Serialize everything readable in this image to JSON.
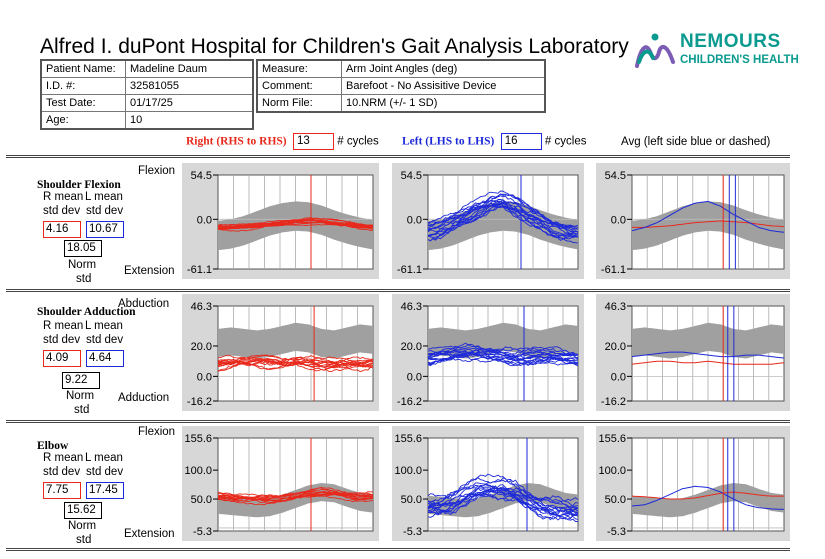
{
  "header": {
    "title": "Alfred I. duPont Hospital for Children's Gait Analysis Laboratory",
    "logo_line1": "NEMOURS",
    "logo_line2": "CHILDREN'S HEALTH"
  },
  "patient": {
    "name_label": "Patient Name:",
    "name": "Madeline Daum",
    "id_label": "I.D. #:",
    "id": "32581055",
    "date_label": "Test Date:",
    "date": "01/17/25",
    "age_label": "Age:",
    "age": "10"
  },
  "test": {
    "measure_label": "Measure:",
    "measure": "Arm Joint Angles (deg)",
    "comment_label": "Comment:",
    "comment": "Barefoot - No Assisitive Device",
    "norm_label": "Norm File:",
    "norm": "10.NRM (+/- 1 SD)"
  },
  "cycles": {
    "right_label": "Right (RHS to RHS)",
    "right_count": "13",
    "left_label": "Left (LHS to LHS)",
    "left_count": "16",
    "unit": "# cycles",
    "avg_note": "Avg (left side blue or dashed)"
  },
  "rows": [
    {
      "name": "Shoulder Flexion",
      "top_label": "Flexion",
      "bottom_label": "Extension",
      "r_mean_label": "R mean",
      "l_mean_label": "L mean",
      "std_dev_label_r": "std dev",
      "std_dev_label_l": "std dev",
      "r_std": "4.16",
      "l_std": "10.67",
      "norm_std": "18.05",
      "norm_label": "Norm",
      "std_label": "std"
    },
    {
      "name": "Shoulder Adduction",
      "top_label": "Abduction",
      "bottom_label": "Adduction",
      "r_mean_label": "R mean",
      "l_mean_label": "L mean",
      "std_dev_label_r": "std dev",
      "std_dev_label_l": "std dev",
      "r_std": "4.09",
      "l_std": "4.64",
      "norm_std": "9.22",
      "norm_label": "Norm",
      "std_label": "std"
    },
    {
      "name": "Elbow",
      "top_label": "Flexion",
      "bottom_label": "Extension",
      "r_mean_label": "R mean",
      "l_mean_label": "L mean",
      "std_dev_label_r": "std dev",
      "std_dev_label_l": "std dev",
      "r_std": "7.75",
      "l_std": "17.45",
      "norm_std": "15.62",
      "norm_label": "Norm",
      "std_label": "std"
    }
  ],
  "colors": {
    "right": "#e8291c",
    "left": "#1e2ad8",
    "norm_band": "#a0a0a0",
    "panel_bg": "#d7d7d7"
  },
  "chart_data": [
    {
      "type": "line",
      "title": "Shoulder Flexion",
      "ylim": [
        -61.1,
        54.5
      ],
      "yticks": [
        "54.5",
        "0.0",
        "-61.1"
      ],
      "xlabel": "",
      "ylabel": "",
      "x_range": [
        0,
        100
      ],
      "norm_band": {
        "mean": [
          -20,
          -18,
          -14,
          -8,
          -2,
          2,
          4,
          3,
          -1,
          -7,
          -12,
          -16,
          -19
        ],
        "sd": 18.05
      },
      "right": {
        "cycles": 13,
        "mean": [
          -10,
          -10,
          -9,
          -8,
          -6,
          -4,
          -3,
          -2,
          -3,
          -4,
          -6,
          -8,
          -9
        ],
        "sd": 4.16,
        "toe_off_pct": 60
      },
      "left": {
        "cycles": 16,
        "mean": [
          -14,
          -10,
          -4,
          5,
          14,
          20,
          22,
          16,
          6,
          -2,
          -10,
          -14,
          -16
        ],
        "sd": 10.67,
        "toe_off_pct": 62
      },
      "avg_right_toe_off_pct": 60,
      "avg_left_toe_off_pct": 64
    },
    {
      "type": "line",
      "title": "Shoulder Adduction",
      "ylim": [
        -16.2,
        46.3
      ],
      "yticks": [
        "46.3",
        "20.0",
        "0.0",
        "-16.2"
      ],
      "xlabel": "",
      "ylabel": "",
      "x_range": [
        0,
        100
      ],
      "norm_band": {
        "mean": [
          22,
          23,
          22,
          21,
          22,
          24,
          26,
          25,
          22,
          21,
          23,
          25,
          24
        ],
        "sd": 9.22
      },
      "right": {
        "cycles": 13,
        "mean": [
          8,
          9,
          10,
          10,
          9,
          9,
          10,
          9,
          8,
          8,
          8,
          8,
          9
        ],
        "sd": 4.09,
        "toe_off_pct": 62
      },
      "left": {
        "cycles": 16,
        "mean": [
          13,
          14,
          15,
          16,
          16,
          15,
          14,
          13,
          13,
          14,
          14,
          13,
          12
        ],
        "sd": 4.64,
        "toe_off_pct": 64
      },
      "avg_right_toe_off_pct": 60,
      "avg_left_toe_off_pct": 63
    },
    {
      "type": "line",
      "title": "Elbow",
      "ylim": [
        -5.3,
        155.6
      ],
      "yticks": [
        "155.6",
        "100.0",
        "50.0",
        "-5.3"
      ],
      "xlabel": "",
      "ylabel": "",
      "x_range": [
        0,
        100
      ],
      "norm_band": {
        "mean": [
          40,
          38,
          36,
          34,
          36,
          42,
          50,
          58,
          62,
          60,
          52,
          45,
          42
        ],
        "sd": 15.62
      },
      "right": {
        "cycles": 13,
        "mean": [
          55,
          54,
          52,
          50,
          50,
          52,
          56,
          60,
          62,
          60,
          57,
          55,
          55
        ],
        "sd": 7.75,
        "toe_off_pct": 60
      },
      "left": {
        "cycles": 16,
        "mean": [
          38,
          40,
          48,
          58,
          68,
          72,
          70,
          62,
          50,
          40,
          35,
          33,
          32
        ],
        "sd": 17.45,
        "toe_off_pct": 66
      },
      "avg_right_toe_off_pct": 60,
      "avg_left_toe_off_pct": 63
    }
  ]
}
